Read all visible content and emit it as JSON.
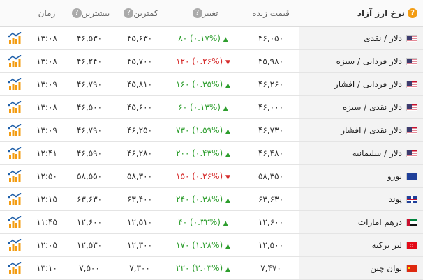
{
  "header": {
    "title": "نرخ ارز آزاد",
    "price": "قیمت زنده",
    "change": "تغییر",
    "low": "کمترین",
    "high": "بیشترین",
    "time": "زمان"
  },
  "colors": {
    "up": "#2e9e2e",
    "down": "#d62d2d",
    "accent": "#f39c12"
  },
  "rows": [
    {
      "flag": "us",
      "name": "دلار / نقدی",
      "price": "۴۶,۰۵۰",
      "dir": "up",
      "amount": "۸۰",
      "pct": "(۰.۱۷%)",
      "low": "۴۵,۶۳۰",
      "high": "۴۶,۵۳۰",
      "time": "۱۳:۰۸"
    },
    {
      "flag": "us",
      "name": "دلار فردایی / سبزه",
      "price": "۴۵,۹۸۰",
      "dir": "down",
      "amount": "۱۲۰",
      "pct": "(۰.۲۶%)",
      "low": "۴۵,۷۰۰",
      "high": "۴۶,۲۴۰",
      "time": "۱۳:۰۸"
    },
    {
      "flag": "us",
      "name": "دلار فردایی / افشار",
      "price": "۴۶,۲۶۰",
      "dir": "up",
      "amount": "۱۶۰",
      "pct": "(۰.۳۵%)",
      "low": "۴۵,۸۱۰",
      "high": "۴۶,۷۹۰",
      "time": "۱۳:۰۹"
    },
    {
      "flag": "us",
      "name": "دلار نقدی / سبزه",
      "price": "۴۶,۰۰۰",
      "dir": "up",
      "amount": "۶۰",
      "pct": "(۰.۱۳%)",
      "low": "۴۵,۶۰۰",
      "high": "۴۶,۵۰۰",
      "time": "۱۳:۰۸"
    },
    {
      "flag": "us",
      "name": "دلار نقدی / افشار",
      "price": "۴۶,۷۳۰",
      "dir": "up",
      "amount": "۷۳۰",
      "pct": "(۱.۵۹%)",
      "low": "۴۶,۲۵۰",
      "high": "۴۶,۷۹۰",
      "time": "۱۳:۰۹"
    },
    {
      "flag": "us",
      "name": "دلار / سلیمانیه",
      "price": "۴۶,۴۸۰",
      "dir": "up",
      "amount": "۲۰۰",
      "pct": "(۰.۴۳%)",
      "low": "۴۶,۲۸۰",
      "high": "۴۶,۵۹۰",
      "time": "۱۲:۴۱"
    },
    {
      "flag": "eu",
      "name": "یورو",
      "price": "۵۸,۳۵۰",
      "dir": "down",
      "amount": "۱۵۰",
      "pct": "(۰.۲۶%)",
      "low": "۵۸,۳۰۰",
      "high": "۵۸,۵۵۰",
      "time": "۱۲:۵۰"
    },
    {
      "flag": "gb",
      "name": "پوند",
      "price": "۶۳,۶۳۰",
      "dir": "up",
      "amount": "۲۴۰",
      "pct": "(۰.۳۸%)",
      "low": "۶۳,۴۰۰",
      "high": "۶۳,۶۳۰",
      "time": "۱۲:۱۵"
    },
    {
      "flag": "ae",
      "name": "درهم امارات",
      "price": "۱۲,۶۰۰",
      "dir": "up",
      "amount": "۴۰",
      "pct": "(۰.۳۲%)",
      "low": "۱۲,۵۱۰",
      "high": "۱۲,۶۰۰",
      "time": "۱۱:۴۵"
    },
    {
      "flag": "tr",
      "name": "لیر ترکیه",
      "price": "۱۲,۵۰۰",
      "dir": "up",
      "amount": "۱۷۰",
      "pct": "(۱.۳۸%)",
      "low": "۱۲,۳۰۰",
      "high": "۱۲,۵۳۰",
      "time": "۱۲:۰۵"
    },
    {
      "flag": "cn",
      "name": "یوان چین",
      "price": "۷,۴۷۰",
      "dir": "up",
      "amount": "۲۲۰",
      "pct": "(۳.۰۳%)",
      "low": "۷,۳۰۰",
      "high": "۷,۵۰۰",
      "time": "۱۳:۱۰"
    }
  ]
}
